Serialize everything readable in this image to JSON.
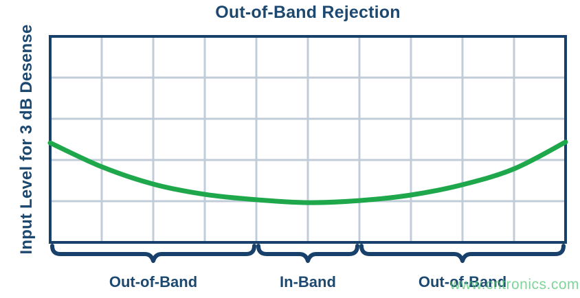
{
  "chart_data": {
    "type": "line",
    "title": "Out-of-Band Rejection",
    "ylabel": "Input Level for 3 dB Desense",
    "xlabel": "",
    "x_tick_labels": [],
    "y_tick_labels": [],
    "grid": {
      "visible": true,
      "columns": 10,
      "rows": 5
    },
    "legend": {
      "visible": false
    },
    "series": [
      {
        "name": "desense-input-level-curve",
        "color": "#1EA74B",
        "points_normalized": [
          [
            0.0,
            0.517
          ],
          [
            0.1,
            0.633
          ],
          [
            0.2,
            0.717
          ],
          [
            0.3,
            0.767
          ],
          [
            0.4,
            0.793
          ],
          [
            0.5,
            0.807
          ],
          [
            0.6,
            0.797
          ],
          [
            0.7,
            0.77
          ],
          [
            0.8,
            0.72
          ],
          [
            0.9,
            0.643
          ],
          [
            1.0,
            0.513
          ]
        ]
      }
    ],
    "bands": [
      {
        "label": "Out-of-Band",
        "x_from": 0.0,
        "x_to": 0.4
      },
      {
        "label": "In-Band",
        "x_from": 0.4,
        "x_to": 0.6
      },
      {
        "label": "Out-of-Band",
        "x_from": 0.6,
        "x_to": 1.0
      }
    ],
    "colors": {
      "text_navy": "#1D4970",
      "axis_border": "#17416B",
      "brace": "#17416B",
      "gridline": "#C0CCD8",
      "curve_green": "#1EA74B",
      "watermark_green": "#54C678"
    }
  },
  "watermark": {
    "text": "www.cntronics.com"
  }
}
